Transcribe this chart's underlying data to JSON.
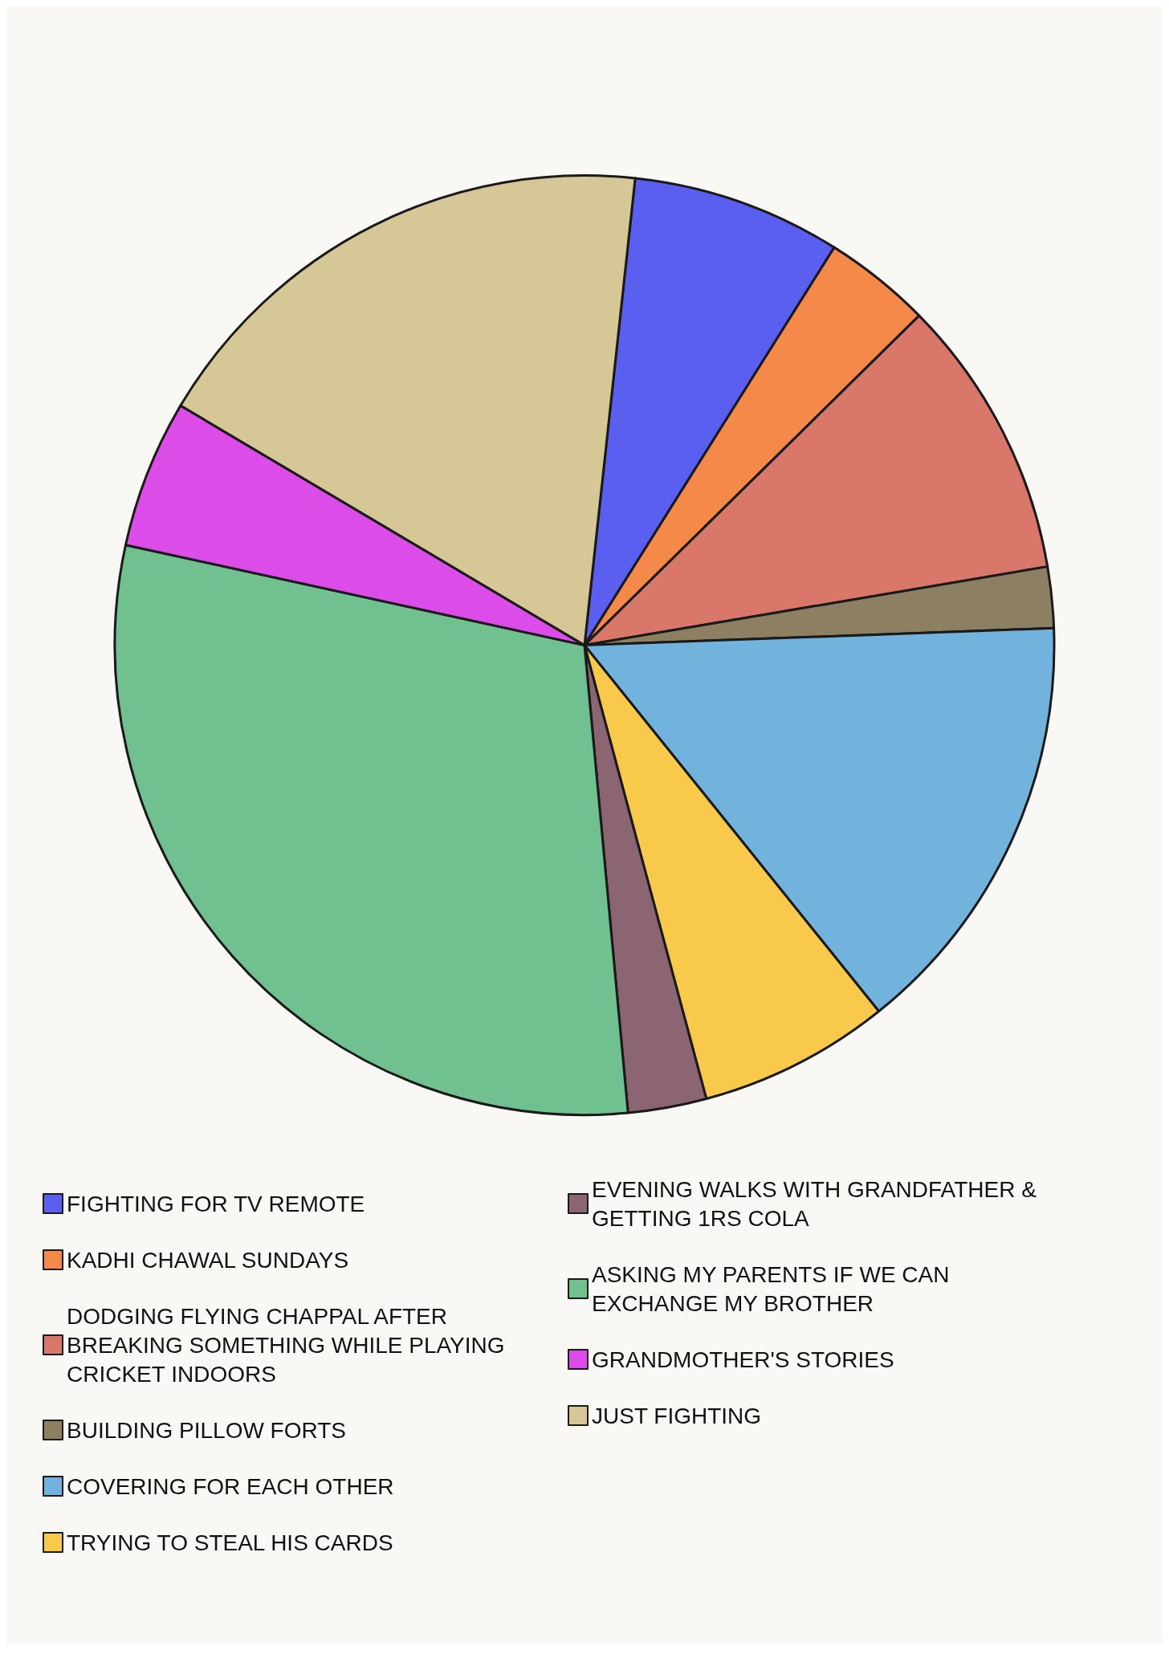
{
  "chart_data": {
    "type": "pie",
    "categories": [
      "FIGHTING FOR TV REMOTE",
      "KADHI CHAWAL SUNDAYS",
      "DODGING FLYING CHAPPAL AFTER BREAKING SOMETHING WHILE PLAYING CRICKET INDOORS",
      "BUILDING PILLOW FORTS",
      "COVERING FOR EACH OTHER",
      "TRYING TO STEAL HIS CARDS",
      "EVENING WALKS WITH GRANDFATHER & GETTING 1RS COLA",
      "ASKING MY PARENTS IF WE CAN EXCHANGE MY BROTHER",
      "GRANDMOTHER'S STORIES",
      "JUST FIGHTING"
    ],
    "values": [
      7.2,
      3.7,
      9.7,
      2.1,
      14.8,
      6.6,
      2.7,
      29.9,
      5.1,
      18.2
    ],
    "colors": [
      "#5a5ff0",
      "#f5894a",
      "#d9776a",
      "#8c7f62",
      "#72b3dd",
      "#f8c94a",
      "#8b6572",
      "#70c090",
      "#dc4ce8",
      "#d6c796"
    ],
    "legend": "bottom"
  }
}
